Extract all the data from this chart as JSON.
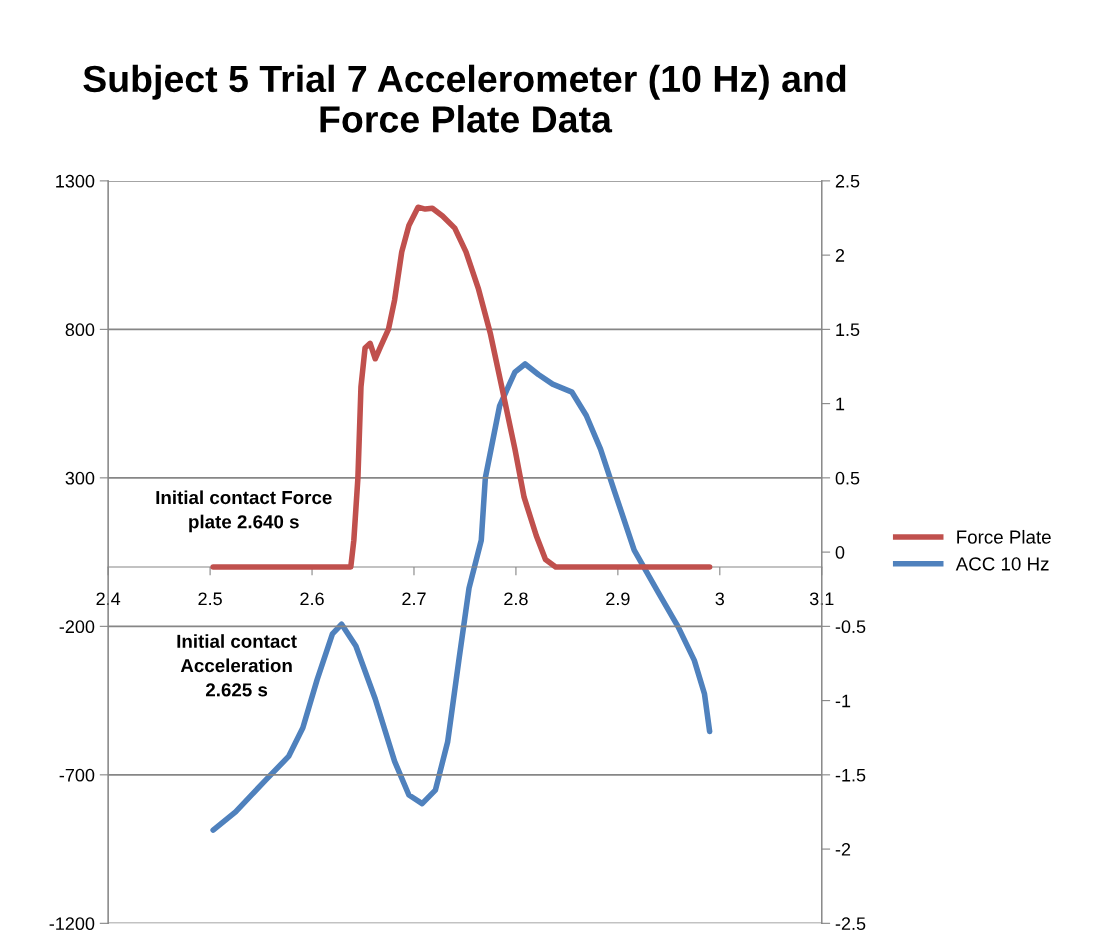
{
  "chart_data": {
    "type": "line",
    "title": "Subject 5 Trial 7 Accelerometer (10 Hz) and\nForce Plate Data",
    "xlim": [
      2.4,
      3.1
    ],
    "xticks": [
      2.4,
      2.5,
      2.6,
      2.7,
      2.8,
      2.9,
      3,
      3.1
    ],
    "ylim": [
      -1200,
      1300
    ],
    "yticks": [
      -1200,
      -700,
      -200,
      300,
      800,
      1300
    ],
    "y2lim": [
      -2.5,
      2.5
    ],
    "y2ticks": [
      -2.5,
      -2,
      -1.5,
      -1,
      -0.5,
      0,
      0.5,
      1,
      1.5,
      2,
      2.5
    ],
    "grid": "y",
    "legend": "right",
    "marker": "none",
    "line_style": "solid",
    "series": [
      {
        "name": "Force Plate",
        "color": "#c0504d",
        "x": [
          2.503,
          2.638,
          2.641,
          2.645,
          2.648,
          2.652,
          2.657,
          2.662,
          2.667,
          2.675,
          2.681,
          2.688,
          2.695,
          2.704,
          2.711,
          2.718,
          2.728,
          2.74,
          2.751,
          2.763,
          2.775,
          2.787,
          2.799,
          2.808,
          2.82,
          2.829,
          2.839,
          2.99
        ],
        "values": [
          0,
          0,
          90,
          300,
          607,
          737,
          753,
          701,
          740,
          801,
          899,
          1061,
          1150,
          1211,
          1205,
          1208,
          1182,
          1141,
          1061,
          939,
          785,
          592,
          397,
          235,
          105,
          25,
          0,
          0
        ]
      },
      {
        "name": "ACC 10 Hz",
        "color": "#4f81bd",
        "axis": "y2",
        "x": [
          2.503,
          2.525,
          2.554,
          2.577,
          2.591,
          2.605,
          2.62,
          2.629,
          2.643,
          2.662,
          2.681,
          2.695,
          2.708,
          2.721,
          2.733,
          2.744,
          2.754,
          2.766,
          2.77,
          2.784,
          2.799,
          2.809,
          2.822,
          2.836,
          2.855,
          2.869,
          2.883,
          2.897,
          2.916,
          2.94,
          2.959,
          2.975,
          2.985,
          2.99
        ],
        "values": [
          -1.872,
          -1.749,
          -1.539,
          -1.376,
          -1.183,
          -0.859,
          -0.551,
          -0.486,
          -0.632,
          -0.989,
          -1.409,
          -1.636,
          -1.694,
          -1.603,
          -1.279,
          -0.729,
          -0.243,
          0.08,
          0.5,
          0.985,
          1.212,
          1.267,
          1.196,
          1.131,
          1.077,
          0.92,
          0.694,
          0.403,
          0.014,
          -0.276,
          -0.502,
          -0.729,
          -0.956,
          -1.208
        ]
      }
    ],
    "annotations": [
      "Initial contact Force\nplate 2.640 s",
      "Initial contact\nAcceleration\n2.625 s"
    ]
  }
}
